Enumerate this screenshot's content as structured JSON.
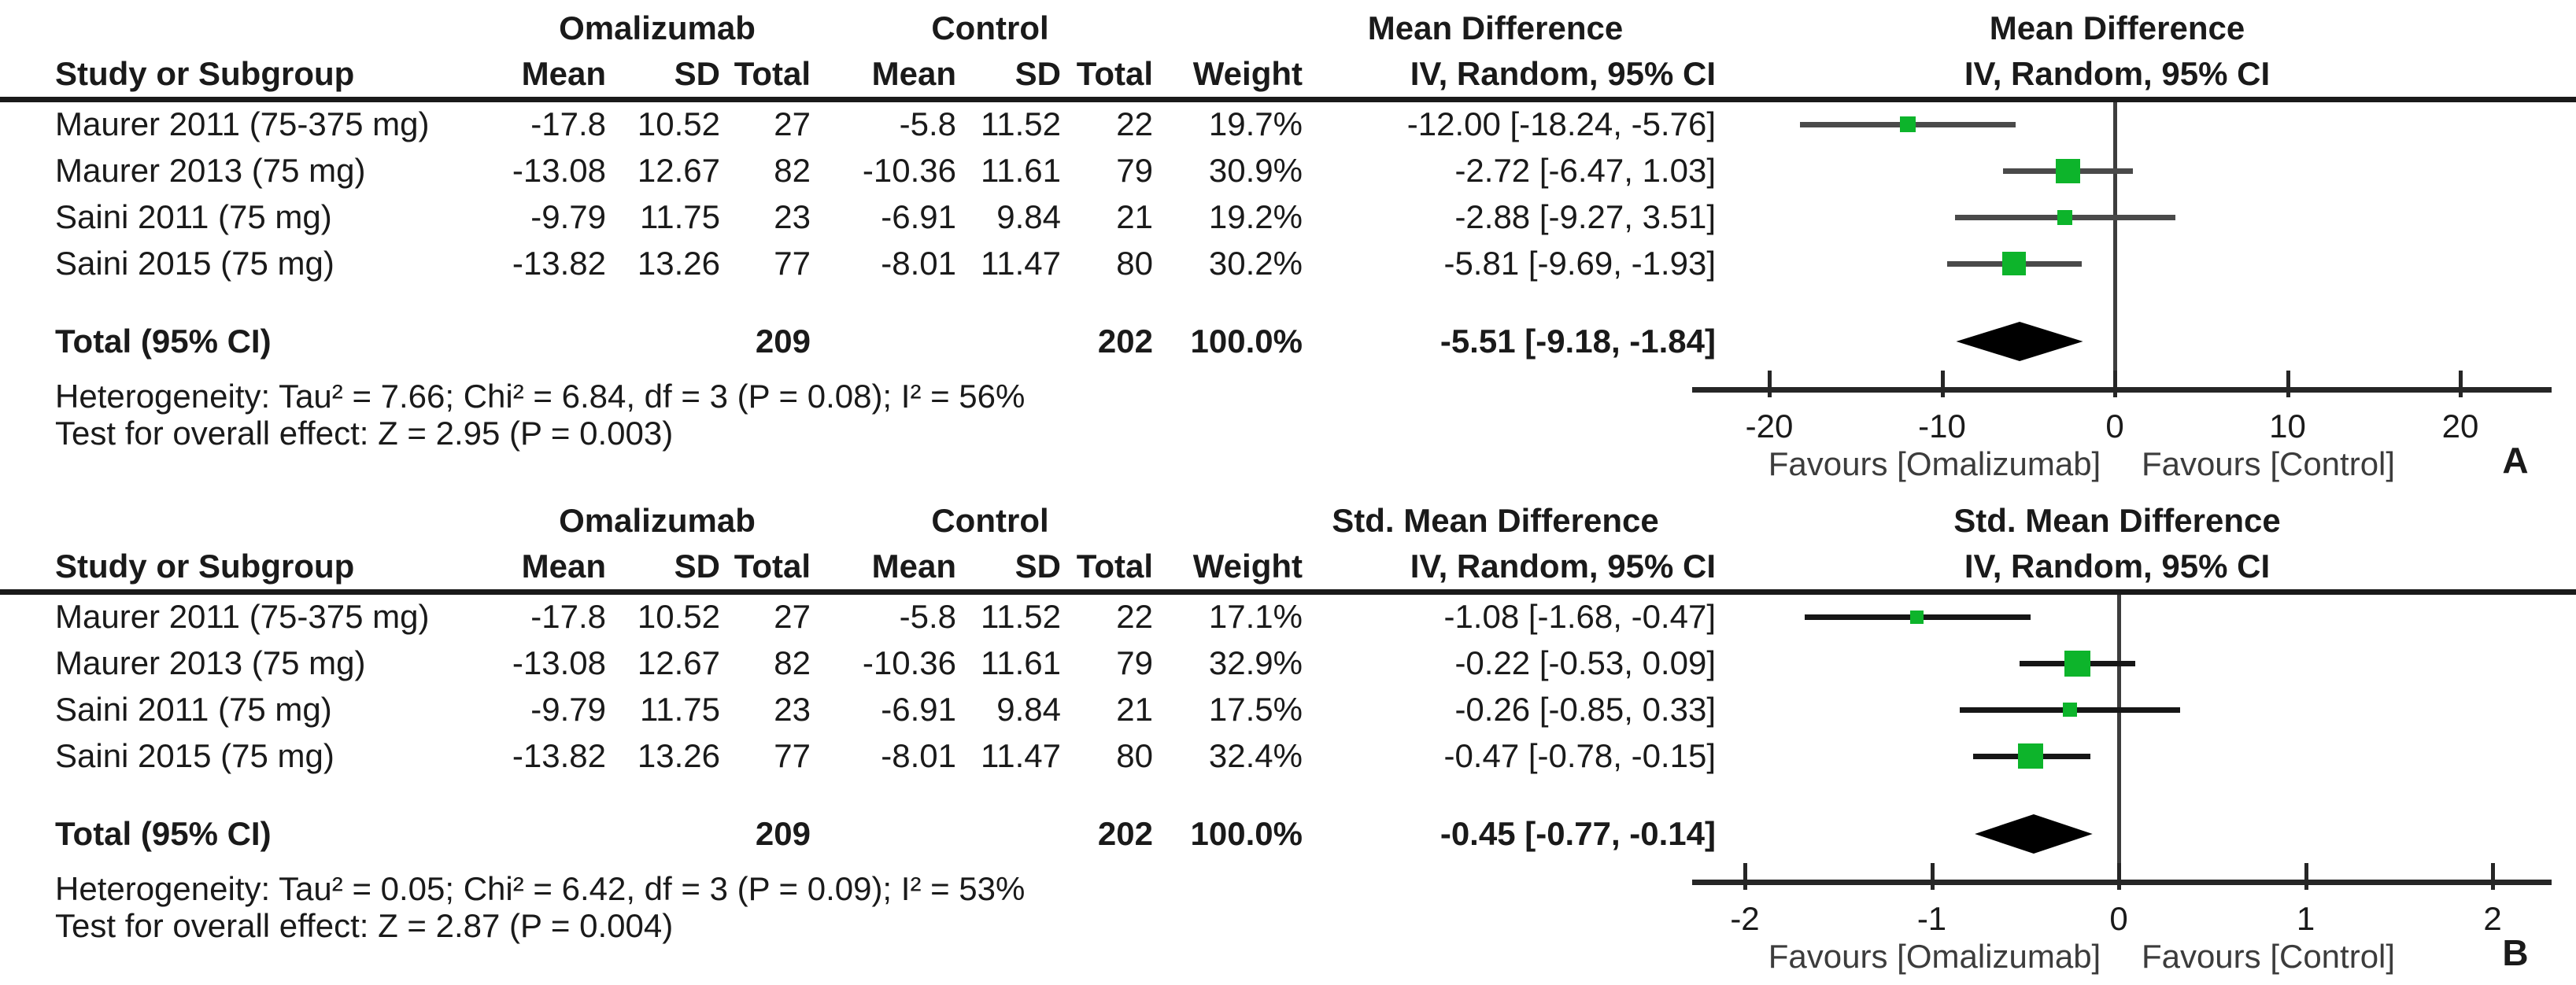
{
  "colors": {
    "marker_green": "#0db42b",
    "diamond_black": "#000000",
    "ci_line_panel_a": "#4a4a4a",
    "ci_line_panel_b": "#161616",
    "axis_line": "#262626",
    "header_rule": "#1a1a1a",
    "zero_line": "#3d3d3d",
    "text": "#1a1a1a",
    "background": "#ffffff"
  },
  "chart_data": [
    {
      "type": "forest",
      "panel_label": "A",
      "group1_header": "Omalizumab",
      "group2_header": "Control",
      "effect_header": "Mean Difference",
      "method_header": "IV, Random, 95% CI",
      "columns": [
        "Study or Subgroup",
        "Mean",
        "SD",
        "Total",
        "Mean",
        "SD",
        "Total",
        "Weight",
        "IV, Random, 95% CI"
      ],
      "rows": [
        {
          "study": "Maurer 2011 (75-375 mg)",
          "mean_t": "-17.8",
          "sd_t": "10.52",
          "total_t": "27",
          "mean_c": "-5.8",
          "sd_c": "11.52",
          "total_c": "22",
          "weight": "19.7%",
          "effect_label": "-12.00 [-18.24, -5.76]",
          "effect": -12.0,
          "ci_low": -18.24,
          "ci_high": -5.76
        },
        {
          "study": "Maurer 2013 (75 mg)",
          "mean_t": "-13.08",
          "sd_t": "12.67",
          "total_t": "82",
          "mean_c": "-10.36",
          "sd_c": "11.61",
          "total_c": "79",
          "weight": "30.9%",
          "effect_label": "-2.72 [-6.47, 1.03]",
          "effect": -2.72,
          "ci_low": -6.47,
          "ci_high": 1.03
        },
        {
          "study": "Saini 2011 (75 mg)",
          "mean_t": "-9.79",
          "sd_t": "11.75",
          "total_t": "23",
          "mean_c": "-6.91",
          "sd_c": "9.84",
          "total_c": "21",
          "weight": "19.2%",
          "effect_label": "-2.88 [-9.27, 3.51]",
          "effect": -2.88,
          "ci_low": -9.27,
          "ci_high": 3.51
        },
        {
          "study": "Saini 2015 (75 mg)",
          "mean_t": "-13.82",
          "sd_t": "13.26",
          "total_t": "77",
          "mean_c": "-8.01",
          "sd_c": "11.47",
          "total_c": "80",
          "weight": "30.2%",
          "effect_label": "-5.81 [-9.69, -1.93]",
          "effect": -5.81,
          "ci_low": -9.69,
          "ci_high": -1.93
        }
      ],
      "total": {
        "label": "Total (95% CI)",
        "total_t": "209",
        "total_c": "202",
        "weight": "100.0%",
        "effect_label": "-5.51 [-9.18, -1.84]",
        "effect": -5.51,
        "ci_low": -9.18,
        "ci_high": -1.84
      },
      "heterogeneity": "Heterogeneity: Tau² = 7.66; Chi² = 6.84, df = 3 (P = 0.08); I² = 56%",
      "overall_effect": "Test for overall effect: Z = 2.95 (P = 0.003)",
      "axis_ticks": [
        -20,
        -10,
        0,
        10,
        20
      ],
      "xlim": [
        -25,
        25
      ],
      "favours_left": "Favours [Omalizumab]",
      "favours_right": "Favours [Control]"
    },
    {
      "type": "forest",
      "panel_label": "B",
      "group1_header": "Omalizumab",
      "group2_header": "Control",
      "effect_header": "Std. Mean Difference",
      "method_header": "IV, Random, 95% CI",
      "columns": [
        "Study or Subgroup",
        "Mean",
        "SD",
        "Total",
        "Mean",
        "SD",
        "Total",
        "Weight",
        "IV, Random, 95% CI"
      ],
      "rows": [
        {
          "study": "Maurer 2011 (75-375 mg)",
          "mean_t": "-17.8",
          "sd_t": "10.52",
          "total_t": "27",
          "mean_c": "-5.8",
          "sd_c": "11.52",
          "total_c": "22",
          "weight": "17.1%",
          "effect_label": "-1.08 [-1.68, -0.47]",
          "effect": -1.08,
          "ci_low": -1.68,
          "ci_high": -0.47
        },
        {
          "study": "Maurer 2013 (75 mg)",
          "mean_t": "-13.08",
          "sd_t": "12.67",
          "total_t": "82",
          "mean_c": "-10.36",
          "sd_c": "11.61",
          "total_c": "79",
          "weight": "32.9%",
          "effect_label": "-0.22 [-0.53, 0.09]",
          "effect": -0.22,
          "ci_low": -0.53,
          "ci_high": 0.09
        },
        {
          "study": "Saini 2011 (75 mg)",
          "mean_t": "-9.79",
          "sd_t": "11.75",
          "total_t": "23",
          "mean_c": "-6.91",
          "sd_c": "9.84",
          "total_c": "21",
          "weight": "17.5%",
          "effect_label": "-0.26 [-0.85, 0.33]",
          "effect": -0.26,
          "ci_low": -0.85,
          "ci_high": 0.33
        },
        {
          "study": "Saini 2015 (75 mg)",
          "mean_t": "-13.82",
          "sd_t": "13.26",
          "total_t": "77",
          "mean_c": "-8.01",
          "sd_c": "11.47",
          "total_c": "80",
          "weight": "32.4%",
          "effect_label": "-0.47 [-0.78, -0.15]",
          "effect": -0.47,
          "ci_low": -0.78,
          "ci_high": -0.15
        }
      ],
      "total": {
        "label": "Total (95% CI)",
        "total_t": "209",
        "total_c": "202",
        "weight": "100.0%",
        "effect_label": "-0.45 [-0.77, -0.14]",
        "effect": -0.45,
        "ci_low": -0.77,
        "ci_high": -0.14
      },
      "heterogeneity": "Heterogeneity: Tau² = 0.05; Chi² = 6.42, df = 3 (P = 0.09); I² = 53%",
      "overall_effect": "Test for overall effect: Z = 2.87 (P = 0.004)",
      "axis_ticks": [
        -2,
        -1,
        0,
        1,
        2
      ],
      "xlim": [
        -2.3,
        2.3
      ],
      "favours_left": "Favours [Omalizumab]",
      "favours_right": "Favours [Control]"
    }
  ]
}
